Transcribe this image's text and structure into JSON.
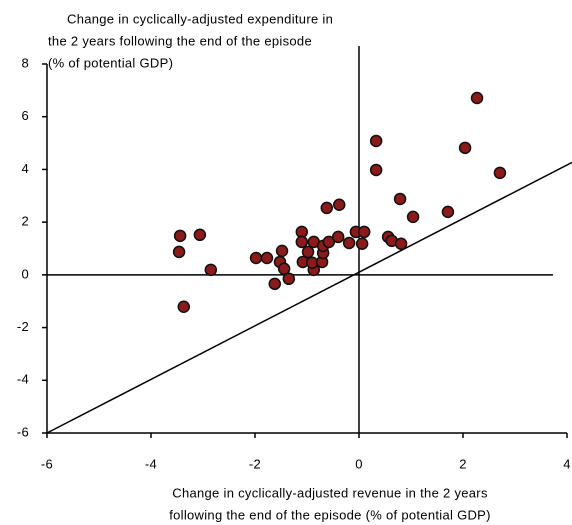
{
  "chart_data": {
    "type": "scatter",
    "ylabel": [
      "Change in cyclically-adjusted expenditure in",
      "the 2 years following the end of the episode",
      "(% of potential GDP)"
    ],
    "xlabel": [
      "Change in cyclically-adjusted revenue in the 2 years",
      "following the end of the episode (% of potential GDP)"
    ],
    "xlim": [
      -6,
      4
    ],
    "ylim": [
      -6,
      8
    ],
    "xticks": [
      -6,
      -4,
      -2,
      0,
      2,
      4
    ],
    "yticks": [
      -6,
      -4,
      -2,
      0,
      2,
      4,
      6,
      8
    ],
    "color": "#8b1a1a",
    "x": [
      -3.44,
      -3.46,
      -3.37,
      -3.06,
      -2.85,
      -1.98,
      -1.77,
      -1.62,
      -1.48,
      -1.52,
      -1.44,
      -1.35,
      -1.1,
      -1.1,
      -1.08,
      -0.98,
      -0.87,
      -0.87,
      -0.9,
      -0.71,
      -0.69,
      -0.69,
      -0.58,
      -0.62,
      -0.38,
      -0.4,
      -0.19,
      -0.06,
      0.06,
      0.1,
      0.33,
      0.33,
      0.56,
      0.63,
      0.79,
      0.81,
      1.04,
      1.71,
      2.04,
      2.27,
      2.71
    ],
    "values": [
      1.48,
      0.87,
      -1.21,
      1.52,
      0.19,
      0.64,
      0.64,
      -0.34,
      0.91,
      0.49,
      0.23,
      -0.15,
      1.63,
      1.25,
      0.49,
      0.87,
      1.25,
      0.19,
      0.46,
      0.49,
      0.83,
      1.1,
      1.25,
      2.54,
      2.66,
      1.44,
      1.21,
      1.63,
      1.18,
      1.63,
      5.08,
      3.98,
      1.44,
      1.29,
      2.88,
      1.18,
      2.2,
      2.39,
      4.82,
      6.71,
      3.87
    ]
  }
}
